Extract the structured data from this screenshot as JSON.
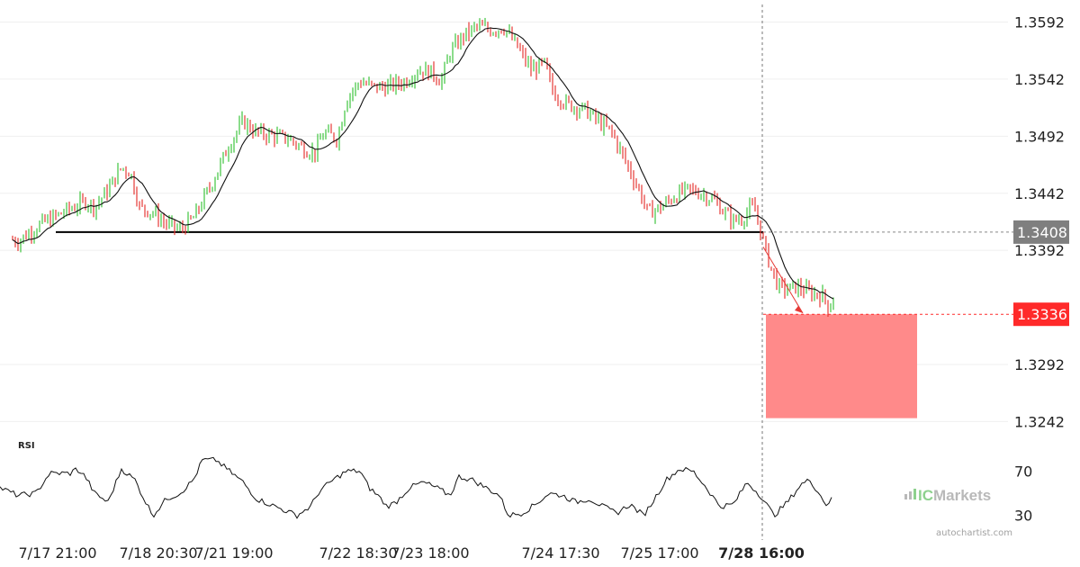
{
  "chart_data": {
    "type": "candlestick",
    "price_axis": {
      "ticks": [
        "1.3592",
        "1.3542",
        "1.3492",
        "1.3442",
        "1.3392",
        "1.3292",
        "1.3242"
      ],
      "range": [
        1.3225,
        1.3605
      ]
    },
    "time_axis": {
      "labels": [
        "7/17 21:00",
        "7/18 20:30",
        "7/21 19:00",
        "7/22 18:30",
        "7/23 18:00",
        "7/24 17:30",
        "7/25 17:00",
        "7/28 16:00"
      ],
      "highlight": "7/28 16:00"
    },
    "price_path": [
      [
        0,
        1.3405
      ],
      [
        20,
        1.34
      ],
      [
        45,
        1.3415
      ],
      [
        70,
        1.3425
      ],
      [
        95,
        1.3435
      ],
      [
        105,
        1.343
      ],
      [
        120,
        1.3445
      ],
      [
        135,
        1.3465
      ],
      [
        145,
        1.346
      ],
      [
        155,
        1.343
      ],
      [
        170,
        1.3425
      ],
      [
        185,
        1.3415
      ],
      [
        200,
        1.341
      ],
      [
        215,
        1.342
      ],
      [
        235,
        1.345
      ],
      [
        255,
        1.3485
      ],
      [
        270,
        1.3505
      ],
      [
        285,
        1.3495
      ],
      [
        300,
        1.3493
      ],
      [
        320,
        1.349
      ],
      [
        340,
        1.348
      ],
      [
        350,
        1.3478
      ],
      [
        360,
        1.3495
      ],
      [
        375,
        1.349
      ],
      [
        385,
        1.3525
      ],
      [
        400,
        1.354
      ],
      [
        415,
        1.3535
      ],
      [
        430,
        1.3535
      ],
      [
        450,
        1.354
      ],
      [
        465,
        1.355
      ],
      [
        480,
        1.3548
      ],
      [
        490,
        1.354
      ],
      [
        500,
        1.3565
      ],
      [
        515,
        1.358
      ],
      [
        530,
        1.3588
      ],
      [
        545,
        1.3585
      ],
      [
        560,
        1.3587
      ],
      [
        575,
        1.357
      ],
      [
        590,
        1.355
      ],
      [
        605,
        1.3555
      ],
      [
        615,
        1.353
      ],
      [
        630,
        1.352
      ],
      [
        650,
        1.3515
      ],
      [
        665,
        1.3505
      ],
      [
        680,
        1.3495
      ],
      [
        695,
        1.347
      ],
      [
        710,
        1.3445
      ],
      [
        720,
        1.3425
      ],
      [
        735,
        1.343
      ],
      [
        750,
        1.344
      ],
      [
        765,
        1.3445
      ],
      [
        780,
        1.3442
      ],
      [
        795,
        1.3435
      ],
      [
        805,
        1.3425
      ],
      [
        815,
        1.3418
      ],
      [
        825,
        1.342
      ],
      [
        835,
        1.343
      ],
      [
        840,
        1.3425
      ],
      [
        848,
        1.34
      ],
      [
        855,
        1.338
      ],
      [
        865,
        1.336
      ],
      [
        875,
        1.3358
      ],
      [
        885,
        1.336
      ],
      [
        900,
        1.3355
      ],
      [
        915,
        1.3352
      ],
      [
        922,
        1.334
      ],
      [
        926,
        1.3352
      ]
    ],
    "support_level": "1.3408",
    "target_level": "1.3336",
    "target_zone": [
      1.3336,
      1.3245
    ],
    "rsi": {
      "title": "RSI",
      "ticks": [
        "70",
        "30"
      ],
      "range": [
        20,
        85
      ],
      "path": [
        [
          0,
          55
        ],
        [
          20,
          48
        ],
        [
          40,
          50
        ],
        [
          55,
          68
        ],
        [
          78,
          68
        ],
        [
          85,
          72
        ],
        [
          95,
          65
        ],
        [
          105,
          50
        ],
        [
          120,
          42
        ],
        [
          135,
          72
        ],
        [
          150,
          62
        ],
        [
          160,
          45
        ],
        [
          170,
          30
        ],
        [
          185,
          45
        ],
        [
          200,
          50
        ],
        [
          215,
          62
        ],
        [
          225,
          80
        ],
        [
          240,
          80
        ],
        [
          255,
          70
        ],
        [
          270,
          60
        ],
        [
          285,
          45
        ],
        [
          300,
          40
        ],
        [
          315,
          35
        ],
        [
          330,
          30
        ],
        [
          345,
          38
        ],
        [
          355,
          52
        ],
        [
          370,
          62
        ],
        [
          385,
          70
        ],
        [
          400,
          70
        ],
        [
          410,
          55
        ],
        [
          420,
          48
        ],
        [
          430,
          38
        ],
        [
          440,
          42
        ],
        [
          455,
          55
        ],
        [
          470,
          60
        ],
        [
          485,
          55
        ],
        [
          500,
          48
        ],
        [
          510,
          65
        ],
        [
          525,
          62
        ],
        [
          540,
          55
        ],
        [
          555,
          48
        ],
        [
          565,
          30
        ],
        [
          580,
          32
        ],
        [
          595,
          40
        ],
        [
          610,
          50
        ],
        [
          625,
          48
        ],
        [
          640,
          42
        ],
        [
          655,
          45
        ],
        [
          670,
          38
        ],
        [
          685,
          32
        ],
        [
          700,
          40
        ],
        [
          715,
          30
        ],
        [
          725,
          42
        ],
        [
          740,
          62
        ],
        [
          755,
          72
        ],
        [
          770,
          70
        ],
        [
          785,
          55
        ],
        [
          800,
          38
        ],
        [
          815,
          40
        ],
        [
          830,
          60
        ],
        [
          845,
          48
        ],
        [
          860,
          30
        ],
        [
          875,
          42
        ],
        [
          890,
          58
        ],
        [
          900,
          62
        ],
        [
          910,
          50
        ],
        [
          918,
          40
        ],
        [
          925,
          45
        ]
      ]
    }
  },
  "tags": {
    "support": "1.3408",
    "target": "1.3336"
  },
  "colors": {
    "bull": "#3ec43e",
    "bear": "#e53935",
    "support_tag": "#7f7f7f",
    "target_tag": "#ff2a2a",
    "target_zone": "#ff8a8a"
  },
  "brand": {
    "logo": "ICMarkets",
    "logo_prefix": "IC",
    "logo_suffix": "Markets",
    "credit": "autochartist.com"
  }
}
